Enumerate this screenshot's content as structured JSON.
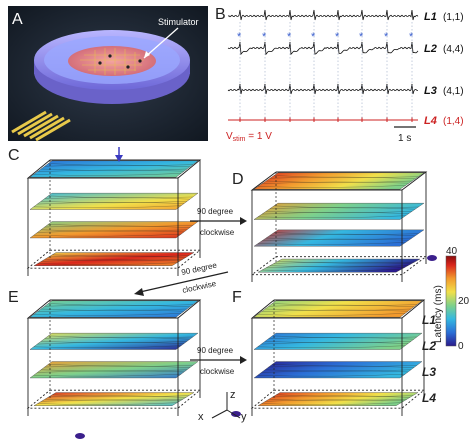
{
  "panels": [
    "A",
    "B",
    "C",
    "D",
    "E",
    "F"
  ],
  "panel_a": {
    "stimulator_label": "Stimulator"
  },
  "panel_b": {
    "traces": [
      {
        "name": "L1",
        "coord": "(1,1)",
        "color": "#111111"
      },
      {
        "name": "L2",
        "coord": "(4,4)",
        "color": "#111111"
      },
      {
        "name": "L3",
        "coord": "(4,1)",
        "color": "#111111"
      },
      {
        "name": "L4",
        "coord": "(1,4)",
        "color": "#cc2222"
      }
    ],
    "stim_prefix": "V",
    "stim_sub": "stim",
    "stim_suffix": " = 1 V",
    "scalebar_label": "1 s",
    "marker": "*"
  },
  "arrows": {
    "c_to_d": [
      "90 degree",
      "clockwise"
    ],
    "d_to_e": [
      "90 degree",
      "clockwise"
    ],
    "e_to_f": [
      "90 degree",
      "clockwise"
    ]
  },
  "colorbar": {
    "label": "Latency (ms)",
    "max": "40",
    "mid": "20",
    "min": "0",
    "colors": [
      "#2a1a8c",
      "#2b6fd6",
      "#35b8e0",
      "#7fd18a",
      "#f1e04a",
      "#f29a2e",
      "#d9261c",
      "#8a0d0d"
    ]
  },
  "layer_labels": [
    "L1",
    "L2",
    "L3",
    "L4"
  ],
  "axes": {
    "x": "x",
    "y": "y",
    "z": "z"
  }
}
